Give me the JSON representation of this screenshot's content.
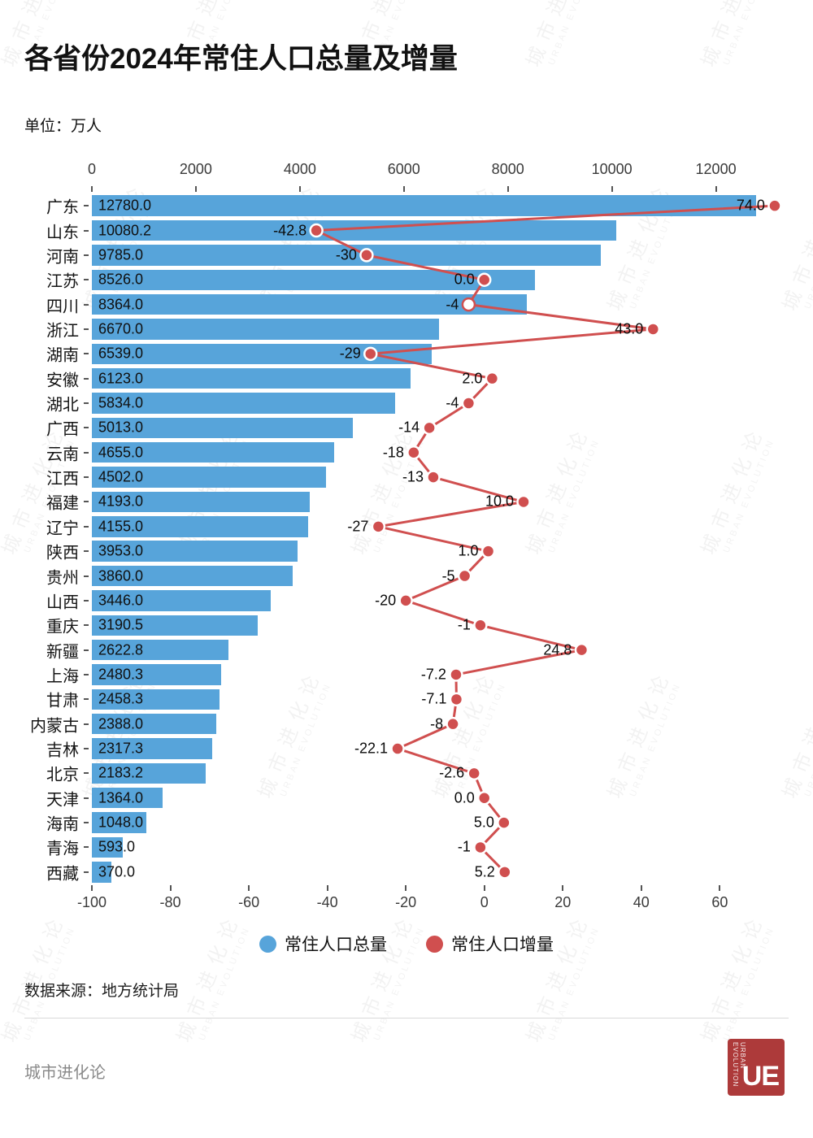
{
  "title": "各省份2024年常住人口总量及增量",
  "unit_label": "单位：万人",
  "source": "数据来源：地方统计局",
  "watermark": {
    "cn": "城市进化论",
    "en": "URBAN EVOLUTION"
  },
  "footer": {
    "brand": "城市进化论",
    "logo_text": "UE",
    "logo_sub": "URBAN EVOLUTION"
  },
  "legend": [
    {
      "label": "常住人口总量",
      "color": "#57A4DA"
    },
    {
      "label": "常住人口增量",
      "color": "#D04F4F"
    }
  ],
  "chart_data": {
    "type": "bar",
    "orientation": "horizontal",
    "title": "各省份2024年常住人口总量及增量",
    "unit": "万人",
    "categories": [
      "广东",
      "山东",
      "河南",
      "江苏",
      "四川",
      "浙江",
      "湖南",
      "安徽",
      "湖北",
      "广西",
      "云南",
      "江西",
      "福建",
      "辽宁",
      "陕西",
      "贵州",
      "山西",
      "重庆",
      "新疆",
      "上海",
      "甘肃",
      "内蒙古",
      "吉林",
      "北京",
      "天津",
      "海南",
      "青海",
      "西藏"
    ],
    "series": [
      {
        "name": "常住人口总量",
        "type": "bar",
        "axis": "top",
        "color": "#57A4DA",
        "values": [
          12780.0,
          10080.2,
          9785.0,
          8526.0,
          8364.0,
          6670.0,
          6539.0,
          6123.0,
          5834.0,
          5013.0,
          4655.0,
          4502.0,
          4193.0,
          4155.0,
          3953.0,
          3860.0,
          3446.0,
          3190.5,
          2622.8,
          2480.3,
          2458.3,
          2388.0,
          2317.3,
          2183.2,
          1364.0,
          1048.0,
          593.0,
          370.0
        ],
        "labels": [
          "12780.0",
          "10080.2",
          "9785.0",
          "8526.0",
          "8364.0",
          "6670.0",
          "6539.0",
          "6123.0",
          "5834.0",
          "5013.0",
          "4655.0",
          "4502.0",
          "4193.0",
          "4155.0",
          "3953.0",
          "3860.0",
          "3446.0",
          "3190.5",
          "2622.8",
          "2480.3",
          "2458.3",
          "2388.0",
          "2317.3",
          "2183.2",
          "1364.0",
          "1048.0",
          "593.0",
          "370.0"
        ]
      },
      {
        "name": "常住人口增量",
        "type": "line",
        "axis": "bottom",
        "color": "#D04F4F",
        "values": [
          74.0,
          -42.8,
          -30,
          0.0,
          -4,
          43.0,
          -29,
          2.0,
          -4,
          -14,
          -18,
          -13,
          10.0,
          -27,
          1.0,
          -5,
          -20,
          -1,
          24.8,
          -7.2,
          -7.1,
          -8,
          -22.1,
          -2.6,
          0.0,
          5.0,
          -1,
          5.2
        ],
        "labels": [
          "74.0",
          "-42.8",
          "-30",
          "0.0",
          "-4",
          "43.0",
          "-29",
          "2.0",
          "-4",
          "-14",
          "-18",
          "-13",
          "10.0",
          "-27",
          "1.0",
          "-5",
          "-20",
          "-1",
          "24.8",
          "-7.2",
          "-7.1",
          "-8",
          "-22.1",
          "-2.6",
          "0.0",
          "5.0",
          "-1",
          "5.2"
        ],
        "open_marker_indices": [
          4
        ]
      }
    ],
    "top_axis": {
      "ticks": [
        0,
        2000,
        4000,
        6000,
        8000,
        10000,
        12000
      ],
      "range": [
        0,
        13320
      ]
    },
    "bottom_axis": {
      "ticks": [
        -100,
        -80,
        -60,
        -40,
        -20,
        0,
        20,
        40,
        60
      ],
      "range": [
        -100,
        76.5
      ]
    },
    "grid": false,
    "legend_position": "bottom"
  }
}
